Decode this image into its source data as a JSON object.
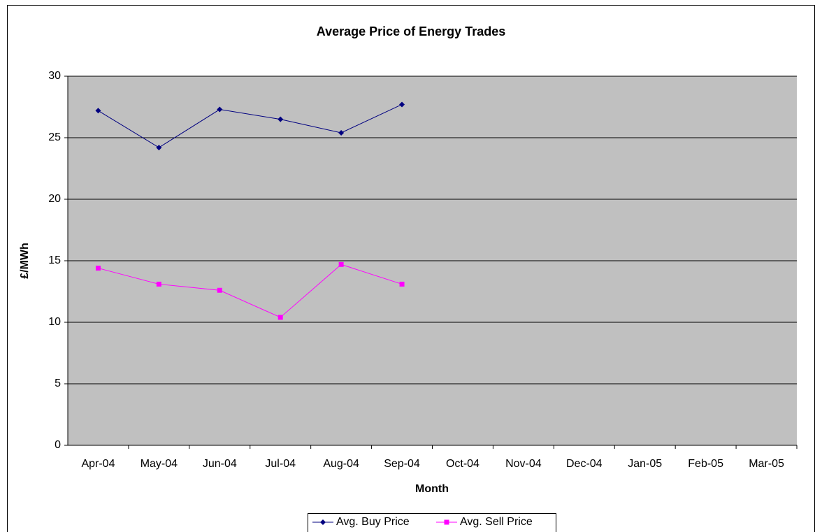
{
  "chart_data": {
    "type": "line",
    "title": "Average Price of Energy Trades",
    "x_label": "Month",
    "y_label": "£/MWh",
    "categories": [
      "Apr-04",
      "May-04",
      "Jun-04",
      "Jul-04",
      "Aug-04",
      "Sep-04",
      "Oct-04",
      "Nov-04",
      "Dec-04",
      "Jan-05",
      "Feb-05",
      "Mar-05"
    ],
    "series": [
      {
        "name": "Avg. Buy Price",
        "color": "#000080",
        "values": [
          27.2,
          24.2,
          27.3,
          26.5,
          25.4,
          27.7,
          null,
          null,
          null,
          null,
          null,
          null
        ]
      },
      {
        "name": "Avg. Sell Price",
        "color": "#ff00ff",
        "values": [
          14.4,
          13.1,
          12.6,
          10.4,
          14.7,
          13.1,
          null,
          null,
          null,
          null,
          null,
          null
        ]
      }
    ],
    "ylim": [
      0,
      30
    ],
    "yticks": [
      0,
      5,
      10,
      15,
      20,
      25,
      30
    ],
    "grid": true,
    "legend": "bottom"
  }
}
